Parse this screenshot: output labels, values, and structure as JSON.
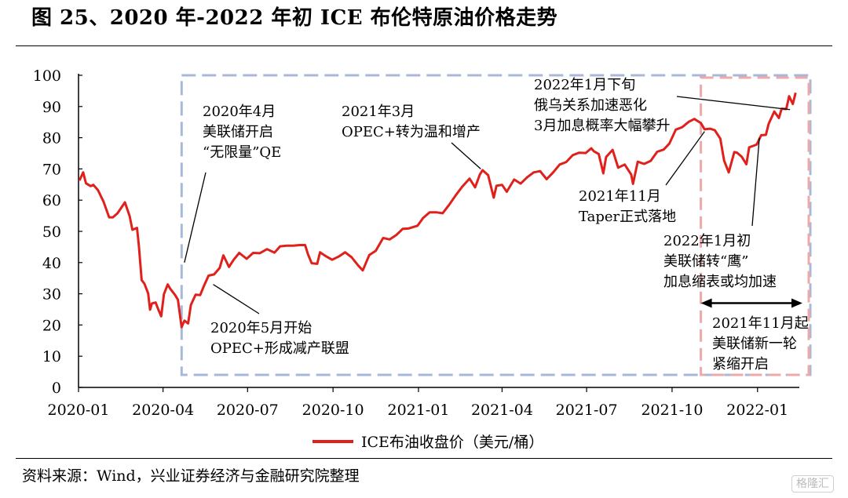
{
  "title": "图 25、2020 年-2022 年初 ICE 布伦特原油价格走势",
  "source": "资料来源：Wind，兴业证券经济与金融研究院整理",
  "watermark": "格隆汇",
  "colors": {
    "line": "#e0201b",
    "blue_box": "#a8b8d8",
    "pink_box": "#ecaaaa",
    "axis": "#000000"
  },
  "chart_data": {
    "type": "line",
    "title": "",
    "xlabel": "",
    "ylabel": "",
    "ylim": [
      0,
      100
    ],
    "yticks": [
      "0",
      "10",
      "20",
      "30",
      "40",
      "50",
      "60",
      "70",
      "80",
      "90",
      "100"
    ],
    "xticks": [
      "2020-01",
      "2020-04",
      "2020-07",
      "2020-10",
      "2021-01",
      "2021-04",
      "2021-07",
      "2021-10",
      "2022-01"
    ],
    "xrange": [
      "2020-01-01",
      "2022-02-15"
    ],
    "grid": false,
    "legend": "bottom-center",
    "series": [
      {
        "name": "ICE布油收盘价（美元/桶）",
        "points": [
          [
            "2020-01-02",
            66.3
          ],
          [
            "2020-01-06",
            68.9
          ],
          [
            "2020-01-09",
            65.4
          ],
          [
            "2020-01-14",
            64.5
          ],
          [
            "2020-01-17",
            64.9
          ],
          [
            "2020-01-22",
            63.2
          ],
          [
            "2020-01-28",
            59.5
          ],
          [
            "2020-02-03",
            54.5
          ],
          [
            "2020-02-07",
            54.5
          ],
          [
            "2020-02-12",
            55.8
          ],
          [
            "2020-02-20",
            59.3
          ],
          [
            "2020-02-25",
            54.9
          ],
          [
            "2020-02-28",
            50.5
          ],
          [
            "2020-03-04",
            51.1
          ],
          [
            "2020-03-06",
            45.3
          ],
          [
            "2020-03-09",
            34.4
          ],
          [
            "2020-03-12",
            33.2
          ],
          [
            "2020-03-16",
            30.1
          ],
          [
            "2020-03-18",
            24.9
          ],
          [
            "2020-03-20",
            26.9
          ],
          [
            "2020-03-24",
            27.2
          ],
          [
            "2020-03-27",
            24.9
          ],
          [
            "2020-03-30",
            22.8
          ],
          [
            "2020-04-02",
            29.9
          ],
          [
            "2020-04-06",
            33.0
          ],
          [
            "2020-04-09",
            31.5
          ],
          [
            "2020-04-14",
            29.6
          ],
          [
            "2020-04-17",
            28.1
          ],
          [
            "2020-04-21",
            19.3
          ],
          [
            "2020-04-24",
            21.4
          ],
          [
            "2020-04-28",
            20.5
          ],
          [
            "2020-05-01",
            26.4
          ],
          [
            "2020-05-06",
            29.7
          ],
          [
            "2020-05-11",
            29.6
          ],
          [
            "2020-05-15",
            32.5
          ],
          [
            "2020-05-20",
            35.8
          ],
          [
            "2020-05-26",
            36.2
          ],
          [
            "2020-06-01",
            38.3
          ],
          [
            "2020-06-05",
            42.3
          ],
          [
            "2020-06-11",
            38.6
          ],
          [
            "2020-06-16",
            40.9
          ],
          [
            "2020-06-22",
            43.1
          ],
          [
            "2020-06-30",
            41.2
          ],
          [
            "2020-07-07",
            43.1
          ],
          [
            "2020-07-14",
            43.0
          ],
          [
            "2020-07-22",
            44.3
          ],
          [
            "2020-07-30",
            43.2
          ],
          [
            "2020-08-05",
            45.2
          ],
          [
            "2020-08-12",
            45.4
          ],
          [
            "2020-08-19",
            45.4
          ],
          [
            "2020-08-26",
            45.6
          ],
          [
            "2020-09-01",
            45.6
          ],
          [
            "2020-09-04",
            42.7
          ],
          [
            "2020-09-08",
            39.8
          ],
          [
            "2020-09-14",
            39.6
          ],
          [
            "2020-09-17",
            43.3
          ],
          [
            "2020-09-24",
            41.9
          ],
          [
            "2020-09-30",
            40.9
          ],
          [
            "2020-10-07",
            41.9
          ],
          [
            "2020-10-14",
            43.3
          ],
          [
            "2020-10-21",
            41.7
          ],
          [
            "2020-10-28",
            39.1
          ],
          [
            "2020-11-02",
            37.5
          ],
          [
            "2020-11-09",
            42.4
          ],
          [
            "2020-11-16",
            43.8
          ],
          [
            "2020-11-24",
            47.9
          ],
          [
            "2020-12-01",
            47.4
          ],
          [
            "2020-12-08",
            48.8
          ],
          [
            "2020-12-15",
            50.8
          ],
          [
            "2020-12-21",
            50.9
          ],
          [
            "2020-12-31",
            51.8
          ],
          [
            "2021-01-06",
            54.3
          ],
          [
            "2021-01-13",
            56.1
          ],
          [
            "2021-01-20",
            56.1
          ],
          [
            "2021-01-27",
            55.8
          ],
          [
            "2021-02-03",
            58.5
          ],
          [
            "2021-02-10",
            61.5
          ],
          [
            "2021-02-17",
            64.3
          ],
          [
            "2021-02-25",
            66.9
          ],
          [
            "2021-03-03",
            64.1
          ],
          [
            "2021-03-08",
            68.2
          ],
          [
            "2021-03-11",
            69.6
          ],
          [
            "2021-03-17",
            68.0
          ],
          [
            "2021-03-23",
            60.8
          ],
          [
            "2021-03-26",
            64.6
          ],
          [
            "2021-04-01",
            64.9
          ],
          [
            "2021-04-06",
            62.7
          ],
          [
            "2021-04-14",
            66.6
          ],
          [
            "2021-04-21",
            65.3
          ],
          [
            "2021-04-28",
            67.3
          ],
          [
            "2021-05-05",
            68.9
          ],
          [
            "2021-05-12",
            69.3
          ],
          [
            "2021-05-19",
            66.7
          ],
          [
            "2021-05-26",
            68.9
          ],
          [
            "2021-06-02",
            71.4
          ],
          [
            "2021-06-09",
            72.2
          ],
          [
            "2021-06-16",
            74.4
          ],
          [
            "2021-06-23",
            75.2
          ],
          [
            "2021-06-30",
            75.1
          ],
          [
            "2021-07-06",
            76.6
          ],
          [
            "2021-07-09",
            75.6
          ],
          [
            "2021-07-14",
            74.8
          ],
          [
            "2021-07-19",
            68.6
          ],
          [
            "2021-07-22",
            73.8
          ],
          [
            "2021-07-29",
            76.1
          ],
          [
            "2021-08-04",
            70.4
          ],
          [
            "2021-08-11",
            71.4
          ],
          [
            "2021-08-18",
            68.2
          ],
          [
            "2021-08-20",
            65.2
          ],
          [
            "2021-08-25",
            72.3
          ],
          [
            "2021-09-01",
            71.6
          ],
          [
            "2021-09-08",
            72.6
          ],
          [
            "2021-09-15",
            75.5
          ],
          [
            "2021-09-22",
            76.2
          ],
          [
            "2021-09-28",
            78.1
          ],
          [
            "2021-10-05",
            82.6
          ],
          [
            "2021-10-12",
            83.4
          ],
          [
            "2021-10-19",
            85.1
          ],
          [
            "2021-10-25",
            86.0
          ],
          [
            "2021-11-01",
            84.7
          ],
          [
            "2021-11-05",
            82.7
          ],
          [
            "2021-11-11",
            82.9
          ],
          [
            "2021-11-16",
            82.4
          ],
          [
            "2021-11-22",
            79.7
          ],
          [
            "2021-11-26",
            72.7
          ],
          [
            "2021-12-01",
            68.9
          ],
          [
            "2021-12-07",
            75.4
          ],
          [
            "2021-12-10",
            75.2
          ],
          [
            "2021-12-15",
            73.9
          ],
          [
            "2021-12-20",
            71.5
          ],
          [
            "2021-12-23",
            76.9
          ],
          [
            "2021-12-31",
            77.8
          ],
          [
            "2022-01-05",
            80.8
          ],
          [
            "2022-01-10",
            80.9
          ],
          [
            "2022-01-13",
            84.5
          ],
          [
            "2022-01-19",
            88.4
          ],
          [
            "2022-01-24",
            86.3
          ],
          [
            "2022-01-27",
            89.3
          ],
          [
            "2022-02-01",
            89.2
          ],
          [
            "2022-02-04",
            93.3
          ],
          [
            "2022-02-08",
            90.8
          ],
          [
            "2022-02-11",
            94.4
          ]
        ]
      }
    ],
    "highlight_regions": [
      {
        "style": "blue-dashed",
        "from": "2020-04-21",
        "to": "2022-02-15",
        "ymin": 0,
        "ymax": 100
      },
      {
        "style": "pink-dashed",
        "from": "2021-11-01",
        "to": "2022-02-15",
        "ymin": 0,
        "ymax": 100
      }
    ],
    "range_arrow": {
      "from": "2021-11-01",
      "to": "2022-02-15",
      "y": 27
    },
    "annotations": [
      {
        "lines": [
          "2020年4月",
          "美联储开启",
          "“无限量”QE"
        ],
        "date": "2020-04-24",
        "value": 40
      },
      {
        "lines": [
          "2020年5月开始",
          "OPEC+形成减产联盟"
        ],
        "date": "2020-05-25",
        "value": 33
      },
      {
        "lines": [
          "2021年3月",
          "OPEC+转为温和增产"
        ],
        "date": "2021-03-09",
        "value": 70
      },
      {
        "lines": [
          "2022年1月下旬",
          "俄乌关系加速恶化",
          "3月加息概率大幅攀升"
        ],
        "date": "2022-02-05",
        "value": 89
      },
      {
        "lines": [
          "2021年11月",
          "Taper正式落地"
        ],
        "date": "2021-11-05",
        "value": 82
      },
      {
        "lines": [
          "2022年1月初",
          "美联储转“鹰”",
          "加息缩表或均加速"
        ],
        "date": "2022-01-03",
        "value": 80
      },
      {
        "lines": [
          "2021年11月起",
          "美联储新一轮",
          "紧缩开启"
        ],
        "date": "2021-12-15",
        "value": 20
      }
    ]
  }
}
